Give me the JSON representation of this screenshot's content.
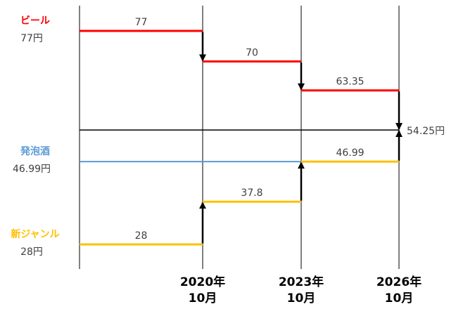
{
  "chart_data": {
    "type": "step",
    "categories": [
      [
        "2020年",
        "10月"
      ],
      [
        "2023年",
        "10月"
      ],
      [
        "2026年",
        "10月"
      ]
    ],
    "series": [
      {
        "name": "ビール",
        "color": "#ff0000",
        "values": [
          77,
          70,
          63.35
        ],
        "legend_value_label": "77円",
        "show_value_labels": true
      },
      {
        "name": "発泡酒",
        "color": "#5b9bd5",
        "values": [
          46.99,
          46.99,
          46.99
        ],
        "legend_value_label": "46.99円",
        "show_value_labels": false
      },
      {
        "name": "新ジャンル",
        "color": "#ffc000",
        "values": [
          28,
          37.8,
          46.99
        ],
        "legend_value_label": "28円",
        "show_value_labels": true
      }
    ],
    "target": {
      "value": 54.25,
      "value_label": "54.25円",
      "color": "#000000"
    },
    "ylim": [
      22,
      83
    ]
  }
}
